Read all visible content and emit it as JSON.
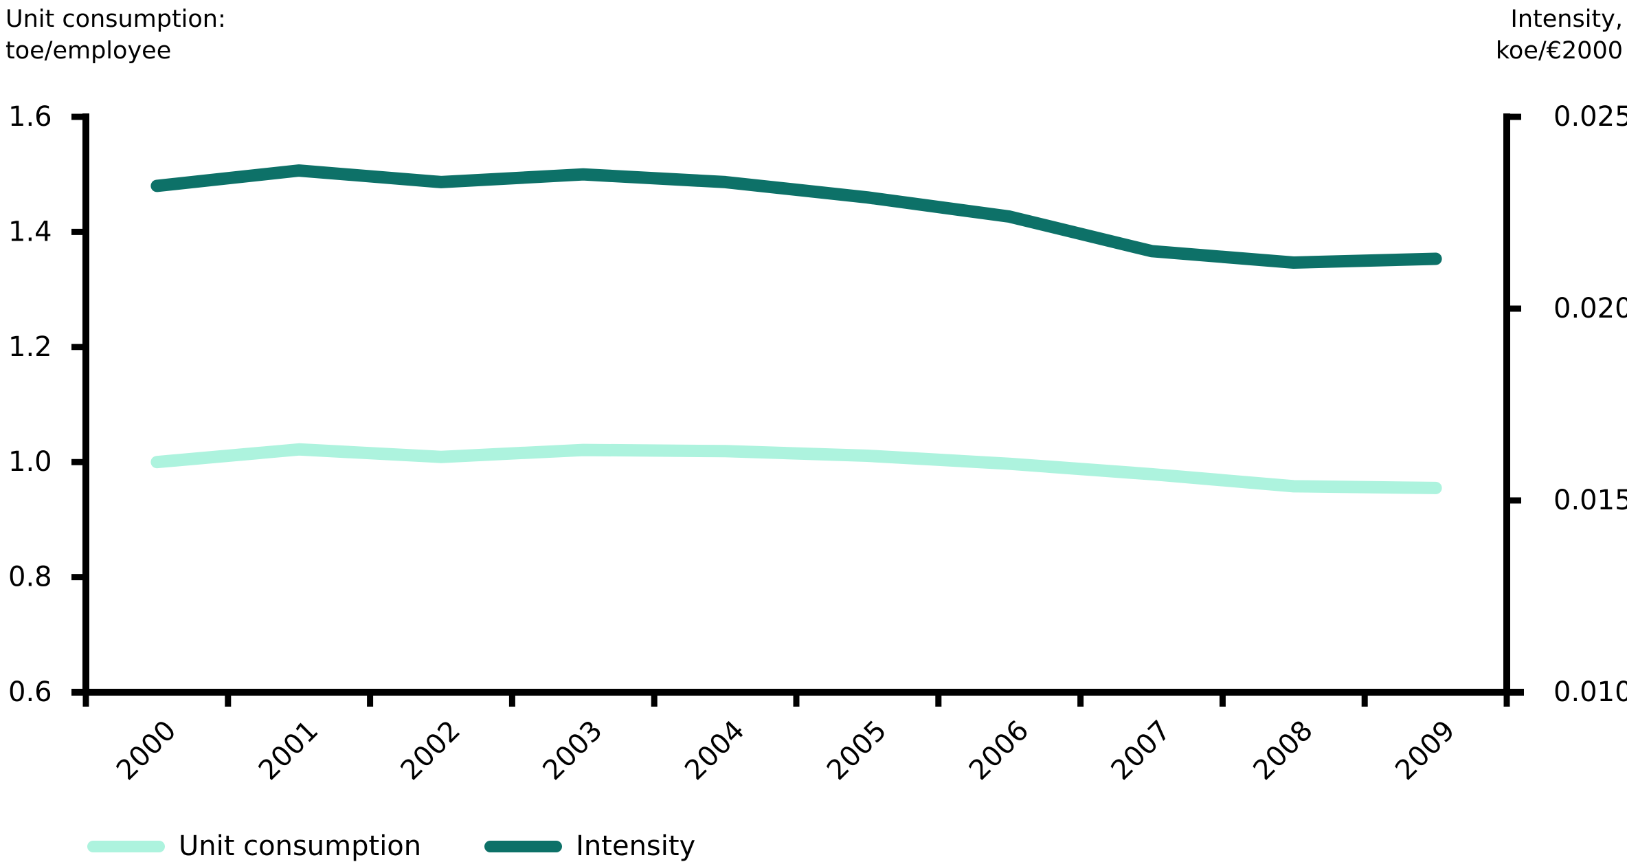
{
  "left_axis": {
    "title": "Unit consumption:\ntoe/employee",
    "ticks": [
      "1.6",
      "1.4",
      "1.2",
      "1.0",
      "0.8",
      "0.6"
    ],
    "range": [
      0.6,
      1.6
    ]
  },
  "right_axis": {
    "title": "Intensity,\nkoe/€2000",
    "ticks": [
      "0.025",
      "0.020",
      "0.015",
      "0.010"
    ],
    "range": [
      0.01,
      0.025
    ]
  },
  "colors": {
    "unit_consumption": "#adf3de",
    "intensity": "#0d7168",
    "axis": "#000000"
  },
  "chart_data": {
    "type": "line",
    "x": [
      2000,
      2001,
      2002,
      2003,
      2004,
      2005,
      2006,
      2007,
      2008,
      2009
    ],
    "series": [
      {
        "name": "Unit consumption",
        "axis": "left",
        "color": "#adf3de",
        "values": [
          1.0,
          1.022,
          1.009,
          1.021,
          1.019,
          1.011,
          0.997,
          0.979,
          0.958,
          0.955
        ]
      },
      {
        "name": "Intensity",
        "axis": "right",
        "color": "#0d7168",
        "values": [
          0.0232,
          0.0236,
          0.0233,
          0.0235,
          0.0233,
          0.0229,
          0.0224,
          0.0215,
          0.0212,
          0.0213
        ]
      }
    ],
    "left_ylabel": "Unit consumption: toe/employee",
    "right_ylabel": "Intensity, koe/€2000",
    "left_ylim": [
      0.6,
      1.6
    ],
    "right_ylim": [
      0.01,
      0.025
    ],
    "grid": false,
    "legend_position": "bottom"
  }
}
